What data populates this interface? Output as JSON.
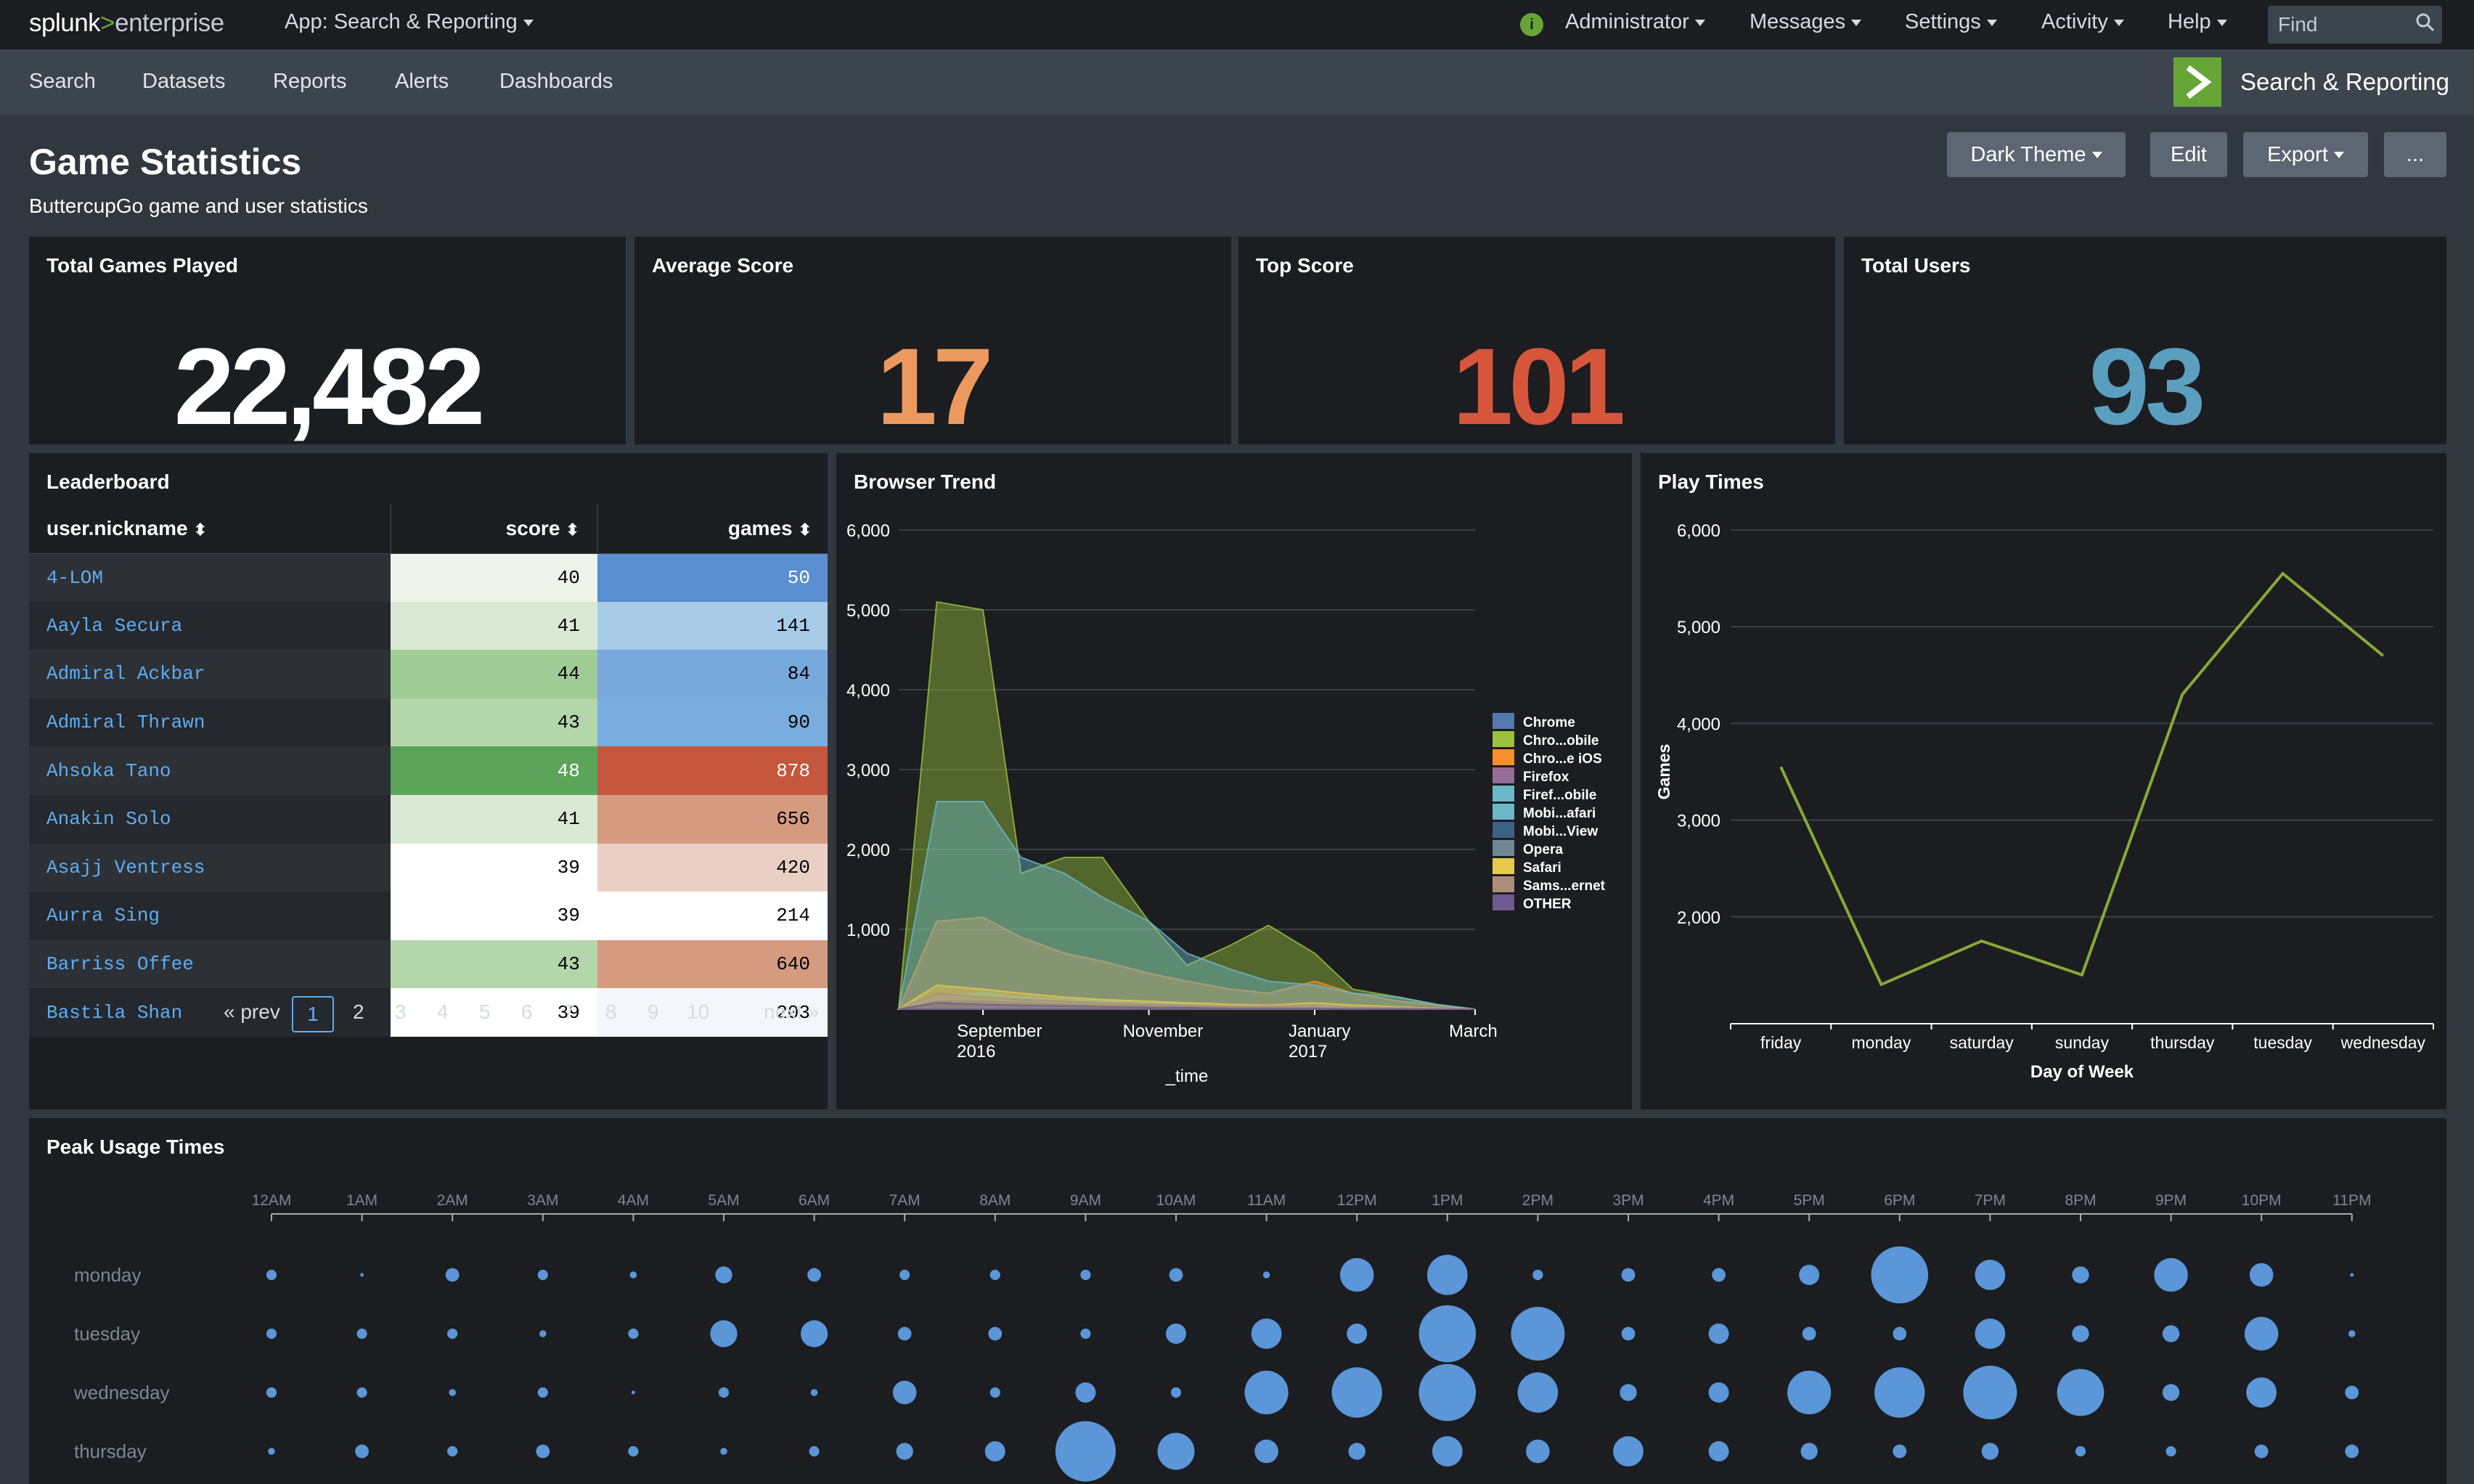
{
  "topbar": {
    "logo_main": "splunk",
    "logo_gt": ">",
    "logo_product": "enterprise",
    "app_menu": "App: Search & Reporting",
    "user": "Administrator",
    "messages": "Messages",
    "settings": "Settings",
    "activity": "Activity",
    "help": "Help",
    "find_placeholder": "Find",
    "status_glyph": "i"
  },
  "navbar": {
    "items": [
      "Search",
      "Datasets",
      "Reports",
      "Alerts",
      "Dashboards"
    ],
    "app_title": "Search & Reporting"
  },
  "dashboard": {
    "title": "Game Statistics",
    "description": "ButtercupGo game and user statistics",
    "buttons": {
      "theme": "Dark Theme",
      "edit": "Edit",
      "export": "Export",
      "more": "..."
    }
  },
  "singles": [
    {
      "title": "Total Games Played",
      "value": "22,482",
      "color": "#ffffff"
    },
    {
      "title": "Average Score",
      "value": "17",
      "color": "#ec9960"
    },
    {
      "title": "Top Score",
      "value": "101",
      "color": "#d6563c"
    },
    {
      "title": "Total Users",
      "value": "93",
      "color": "#5a9fbf"
    }
  ],
  "leaderboard": {
    "title": "Leaderboard",
    "columns": [
      "user.nickname",
      "score",
      "games"
    ],
    "rows": [
      {
        "nickname": "4-LOM",
        "score": "40",
        "games": "50",
        "score_bg": "#eef4ec",
        "games_bg": "#5a8fd0"
      },
      {
        "nickname": "Aayla Secura",
        "score": "41",
        "games": "141",
        "score_bg": "#d9e9d3",
        "games_bg": "#a8cbe8"
      },
      {
        "nickname": "Admiral Ackbar",
        "score": "44",
        "games": "84",
        "score_bg": "#a0cd97",
        "games_bg": "#77a9dd"
      },
      {
        "nickname": "Admiral Thrawn",
        "score": "43",
        "games": "90",
        "score_bg": "#b3d7aa",
        "games_bg": "#7aaddd"
      },
      {
        "nickname": "Ahsoka Tano",
        "score": "48",
        "games": "878",
        "score_bg": "#5ca459",
        "games_bg": "#c4573c"
      },
      {
        "nickname": "Anakin Solo",
        "score": "41",
        "games": "656",
        "score_bg": "#d9e9d3",
        "games_bg": "#d59b80"
      },
      {
        "nickname": "Asajj Ventress",
        "score": "39",
        "games": "420",
        "score_bg": "#ffffff",
        "games_bg": "#ead0c4"
      },
      {
        "nickname": "Aurra Sing",
        "score": "39",
        "games": "214",
        "score_bg": "#ffffff",
        "games_bg": "#ffffff"
      },
      {
        "nickname": "Barriss Offee",
        "score": "43",
        "games": "640",
        "score_bg": "#b3d7aa",
        "games_bg": "#d59b80"
      },
      {
        "nickname": "Bastila Shan",
        "score": "39",
        "games": "203",
        "score_bg": "#ffffff",
        "games_bg": "#f3f7fb"
      }
    ],
    "pager": {
      "prev": "« prev",
      "pages": [
        "1",
        "2",
        "3",
        "4",
        "5",
        "6",
        "7",
        "8",
        "9",
        "10"
      ],
      "next": "next »",
      "current": "1"
    }
  },
  "chart_data": [
    {
      "panel": "Browser Trend",
      "type": "area",
      "title": "Browser Trend",
      "xlabel": "_time",
      "ylabel": "",
      "x": [
        "2016-08-01",
        "2016-08-15",
        "2016-09-01",
        "2016-09-15",
        "2016-10-01",
        "2016-10-15",
        "2016-11-01",
        "2016-11-15",
        "2016-12-01",
        "2016-12-15",
        "2017-01-01",
        "2017-01-15",
        "2017-02-01",
        "2017-02-15",
        "2017-03-01"
      ],
      "x_ticks": [
        {
          "date": "2016-09-01",
          "line1": "September",
          "line2": "2016"
        },
        {
          "date": "2016-11-01",
          "line1": "November",
          "line2": ""
        },
        {
          "date": "2017-01-01",
          "line1": "January",
          "line2": "2017"
        },
        {
          "date": "2017-03-01",
          "line1": "March",
          "line2": ""
        }
      ],
      "ylim": [
        0,
        6000
      ],
      "yticks": [
        "1,000",
        "2,000",
        "3,000",
        "4,000",
        "5,000",
        "6,000"
      ],
      "legend_position": "right",
      "series": [
        {
          "name": "Chrome",
          "color": "#5379af",
          "values": [
            0,
            200,
            120,
            80,
            60,
            50,
            40,
            30,
            20,
            20,
            30,
            20,
            10,
            5,
            0
          ]
        },
        {
          "name": "Chro...obile",
          "color": "#9ac23c",
          "values": [
            0,
            5100,
            5000,
            1700,
            1900,
            1900,
            1100,
            550,
            800,
            1050,
            700,
            250,
            150,
            50,
            0
          ]
        },
        {
          "name": "Chro...e iOS",
          "color": "#f7902b",
          "values": [
            0,
            1100,
            1150,
            900,
            700,
            600,
            450,
            350,
            250,
            200,
            350,
            200,
            100,
            50,
            0
          ]
        },
        {
          "name": "Firefox",
          "color": "#956d95",
          "values": [
            0,
            100,
            80,
            60,
            50,
            40,
            30,
            20,
            20,
            20,
            20,
            10,
            5,
            5,
            0
          ]
        },
        {
          "name": "Firef...obile",
          "color": "#6ab7c7",
          "values": [
            0,
            150,
            200,
            150,
            120,
            100,
            80,
            60,
            40,
            40,
            50,
            30,
            20,
            10,
            0
          ]
        },
        {
          "name": "Mobi...afari",
          "color": "#6ab7c7",
          "values": [
            0,
            2600,
            2600,
            1900,
            1700,
            1400,
            1100,
            700,
            500,
            350,
            300,
            200,
            150,
            60,
            0
          ]
        },
        {
          "name": "Mobi...View",
          "color": "#3c6188",
          "values": [
            0,
            100,
            100,
            80,
            60,
            50,
            40,
            30,
            20,
            20,
            20,
            10,
            5,
            5,
            0
          ]
        },
        {
          "name": "Opera",
          "color": "#708794",
          "values": [
            0,
            50,
            40,
            30,
            30,
            20,
            20,
            10,
            10,
            10,
            10,
            5,
            5,
            0,
            0
          ]
        },
        {
          "name": "Safari",
          "color": "#e6c84c",
          "values": [
            0,
            300,
            250,
            200,
            150,
            120,
            100,
            80,
            60,
            50,
            80,
            50,
            30,
            10,
            0
          ]
        },
        {
          "name": "Sams...ernet",
          "color": "#ac8e7c",
          "values": [
            0,
            200,
            150,
            120,
            100,
            80,
            60,
            50,
            40,
            40,
            50,
            30,
            20,
            10,
            0
          ]
        },
        {
          "name": "OTHER",
          "color": "#6e5a8c",
          "values": [
            0,
            80,
            60,
            50,
            40,
            30,
            20,
            20,
            10,
            10,
            10,
            5,
            5,
            0,
            0
          ]
        }
      ]
    },
    {
      "panel": "Play Times",
      "type": "line",
      "title": "Play Times",
      "xlabel": "Day of Week",
      "ylabel": "Games",
      "categories": [
        "friday",
        "monday",
        "saturday",
        "sunday",
        "thursday",
        "tuesday",
        "wednesday"
      ],
      "series": [
        {
          "color": "#9ac23c",
          "values": [
            3550,
            1300,
            1750,
            1400,
            4300,
            5550,
            4700
          ]
        }
      ],
      "ylim": [
        1000,
        6000
      ],
      "yticks": [
        "2,000",
        "3,000",
        "4,000",
        "5,000",
        "6,000"
      ]
    },
    {
      "panel": "Peak Usage Times",
      "type": "scatter",
      "title": "Peak Usage Times",
      "x_labels": [
        "12AM",
        "1AM",
        "2AM",
        "3AM",
        "4AM",
        "5AM",
        "6AM",
        "7AM",
        "8AM",
        "9AM",
        "10AM",
        "11AM",
        "12PM",
        "1PM",
        "2PM",
        "3PM",
        "4PM",
        "5PM",
        "6PM",
        "7PM",
        "8PM",
        "9PM",
        "10PM",
        "11PM"
      ],
      "y_labels": [
        "monday",
        "tuesday",
        "wednesday",
        "thursday"
      ],
      "color": "#5a96d8",
      "values": [
        [
          2,
          0,
          3,
          2,
          1,
          4,
          3,
          2,
          2,
          2,
          3,
          1,
          9,
          11,
          2,
          3,
          3,
          5,
          16,
          8,
          4,
          9,
          6,
          0
        ],
        [
          2,
          2,
          2,
          1,
          2,
          7,
          7,
          3,
          3,
          2,
          5,
          8,
          5,
          16,
          15,
          3,
          5,
          3,
          3,
          8,
          4,
          4,
          9,
          1
        ],
        [
          2,
          2,
          1,
          2,
          0,
          2,
          1,
          6,
          2,
          5,
          2,
          12,
          14,
          16,
          11,
          4,
          5,
          12,
          14,
          15,
          13,
          4,
          8,
          3
        ],
        [
          1,
          3,
          2,
          3,
          2,
          1,
          2,
          4,
          5,
          17,
          10,
          6,
          4,
          8,
          6,
          8,
          5,
          4,
          3,
          4,
          2,
          2,
          3,
          3
        ]
      ]
    }
  ]
}
